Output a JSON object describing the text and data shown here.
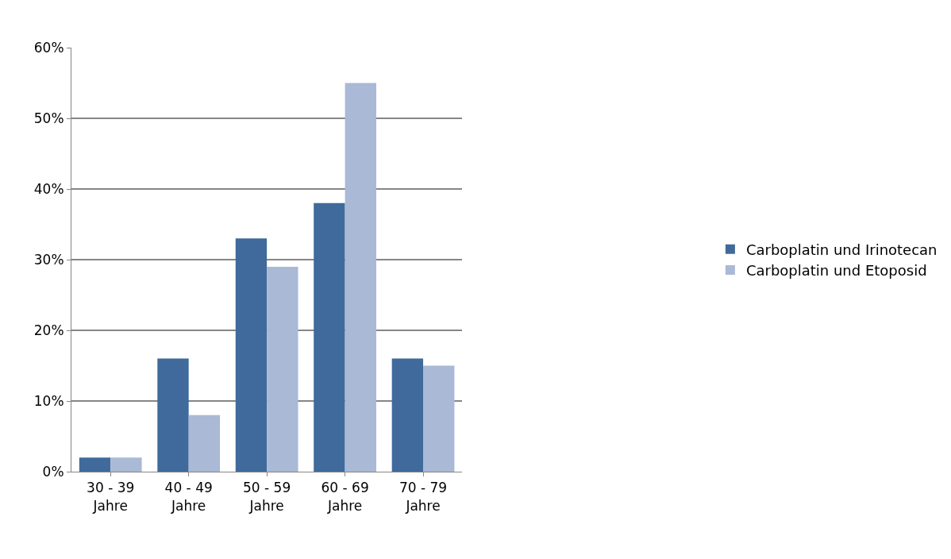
{
  "chart_data": {
    "type": "bar",
    "categories": [
      "30 - 39\nJahre",
      "40 - 49\nJahre",
      "50 - 59\nJahre",
      "60 - 69\nJahre",
      "70 - 79\nJahre"
    ],
    "series": [
      {
        "name": "Carboplatin und Irinotecan",
        "color": "#3f6a9b",
        "values": [
          0.02,
          0.16,
          0.33,
          0.38,
          0.16
        ]
      },
      {
        "name": "Carboplatin und Etoposid",
        "color": "#a9b9d6",
        "values": [
          0.02,
          0.08,
          0.29,
          0.55,
          0.15
        ]
      }
    ],
    "ylim": [
      0,
      0.6
    ],
    "yticks": [
      {
        "value": 0,
        "label": "0%"
      },
      {
        "value": 0.1,
        "label": "10%"
      },
      {
        "value": 0.2,
        "label": "20%"
      },
      {
        "value": 0.3,
        "label": "30%"
      },
      {
        "value": 0.4,
        "label": "40%"
      },
      {
        "value": 0.5,
        "label": "50%"
      },
      {
        "value": 0.6,
        "label": "60%"
      }
    ],
    "grid": "y",
    "legend": "right"
  }
}
